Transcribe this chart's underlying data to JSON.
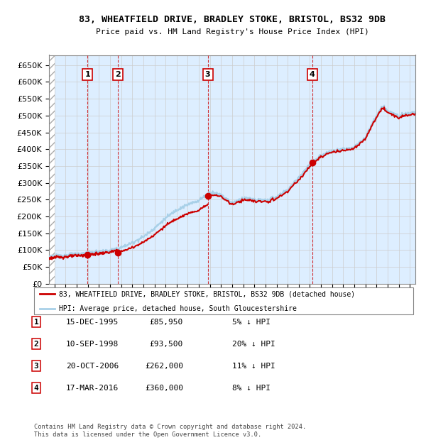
{
  "title": "83, WHEATFIELD DRIVE, BRADLEY STOKE, BRISTOL, BS32 9DB",
  "subtitle": "Price paid vs. HM Land Registry's House Price Index (HPI)",
  "ylim": [
    0,
    680000
  ],
  "yticks": [
    0,
    50000,
    100000,
    150000,
    200000,
    250000,
    300000,
    350000,
    400000,
    450000,
    500000,
    550000,
    600000,
    650000
  ],
  "xlim_start": 1992.5,
  "xlim_end": 2025.5,
  "hatch_end": 1993.0,
  "sales": [
    {
      "num": 1,
      "date": "15-DEC-1995",
      "year": 1995.96,
      "price": 85950,
      "pct": "5% ↓ HPI"
    },
    {
      "num": 2,
      "date": "10-SEP-1998",
      "year": 1998.69,
      "price": 93500,
      "pct": "20% ↓ HPI"
    },
    {
      "num": 3,
      "date": "20-OCT-2006",
      "year": 2006.8,
      "price": 262000,
      "pct": "11% ↓ HPI"
    },
    {
      "num": 4,
      "date": "17-MAR-2016",
      "year": 2016.21,
      "price": 360000,
      "pct": "8% ↓ HPI"
    }
  ],
  "hpi_color": "#a8d0e8",
  "sale_color": "#cc0000",
  "vline_color": "#cc0000",
  "bg_color": "#ddeeff",
  "hatch_color": "#bbbbbb",
  "grid_color": "#cccccc",
  "legend_sale_label": "83, WHEATFIELD DRIVE, BRADLEY STOKE, BRISTOL, BS32 9DB (detached house)",
  "legend_hpi_label": "HPI: Average price, detached house, South Gloucestershire",
  "footer": "Contains HM Land Registry data © Crown copyright and database right 2024.\nThis data is licensed under the Open Government Licence v3.0.",
  "table_rows": [
    [
      "1",
      "15-DEC-1995",
      "£85,950",
      "5% ↓ HPI"
    ],
    [
      "2",
      "10-SEP-1998",
      "£93,500",
      "20% ↓ HPI"
    ],
    [
      "3",
      "20-OCT-2006",
      "£262,000",
      "11% ↓ HPI"
    ],
    [
      "4",
      "17-MAR-2016",
      "£360,000",
      "8% ↓ HPI"
    ]
  ],
  "hpi_anchors": [
    [
      1992.5,
      80000
    ],
    [
      1993.0,
      82000
    ],
    [
      1994.0,
      85000
    ],
    [
      1995.0,
      88000
    ],
    [
      1996.0,
      91000
    ],
    [
      1997.0,
      95000
    ],
    [
      1998.0,
      99000
    ],
    [
      1999.0,
      108000
    ],
    [
      2000.0,
      122000
    ],
    [
      2001.0,
      140000
    ],
    [
      2002.0,
      165000
    ],
    [
      2003.0,
      195000
    ],
    [
      2004.0,
      220000
    ],
    [
      2005.0,
      235000
    ],
    [
      2006.0,
      248000
    ],
    [
      2007.0,
      272000
    ],
    [
      2008.0,
      265000
    ],
    [
      2009.0,
      240000
    ],
    [
      2010.0,
      255000
    ],
    [
      2011.0,
      250000
    ],
    [
      2012.0,
      248000
    ],
    [
      2013.0,
      258000
    ],
    [
      2014.0,
      280000
    ],
    [
      2015.0,
      315000
    ],
    [
      2016.0,
      355000
    ],
    [
      2017.0,
      380000
    ],
    [
      2018.0,
      395000
    ],
    [
      2019.0,
      400000
    ],
    [
      2020.0,
      405000
    ],
    [
      2021.0,
      435000
    ],
    [
      2022.0,
      500000
    ],
    [
      2022.5,
      525000
    ],
    [
      2023.0,
      515000
    ],
    [
      2023.5,
      505000
    ],
    [
      2024.0,
      500000
    ],
    [
      2024.5,
      505000
    ],
    [
      2025.0,
      508000
    ],
    [
      2025.5,
      510000
    ]
  ]
}
